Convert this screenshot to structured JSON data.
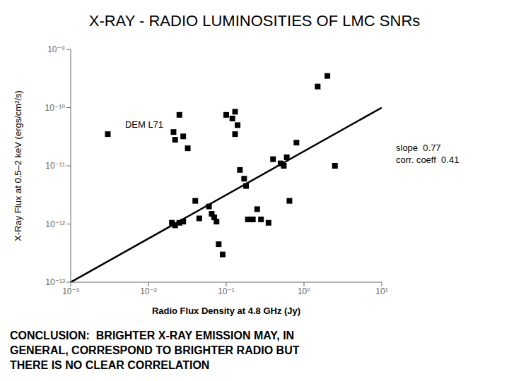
{
  "chart_data": {
    "type": "scatter",
    "title": "X-RAY - RADIO LUMINOSITIES OF LMC SNRs",
    "xlabel": "Radio Flux Density at 4.8 GHz (Jy)",
    "ylabel": "X-Ray Flux at 0.5–2 keV (ergs/cm²/s)",
    "log": true,
    "grid": false,
    "xlim": [
      0.001,
      10
    ],
    "ylim": [
      1e-13,
      1e-09
    ],
    "xticks": [
      {
        "value": 0.001,
        "label": "10⁻³"
      },
      {
        "value": 0.01,
        "label": "10⁻²"
      },
      {
        "value": 0.1,
        "label": "10⁻¹"
      },
      {
        "value": 1,
        "label": "10⁰"
      },
      {
        "value": 10,
        "label": "10¹"
      }
    ],
    "yticks": [
      {
        "value": 1e-13,
        "label": "10⁻¹³"
      },
      {
        "value": 1e-12,
        "label": "10⁻¹²"
      },
      {
        "value": 1e-11,
        "label": "10⁻¹¹"
      },
      {
        "value": 1e-10,
        "label": "10⁻¹⁰"
      },
      {
        "value": 1e-09,
        "label": "10⁻⁹"
      }
    ],
    "series": [
      {
        "type": "scatter",
        "marker": "square",
        "color": "#000000",
        "x": [
          0.003,
          0.021,
          0.022,
          0.025,
          0.028,
          0.032,
          0.02,
          0.022,
          0.025,
          0.028,
          0.04,
          0.045,
          0.06,
          0.065,
          0.07,
          0.075,
          0.08,
          0.09,
          0.1,
          0.12,
          0.13,
          0.13,
          0.14,
          0.15,
          0.17,
          0.18,
          0.19,
          0.2,
          0.22,
          0.25,
          0.28,
          0.35,
          0.4,
          0.5,
          0.55,
          0.6,
          0.65,
          0.8,
          1.5,
          2.0,
          2.5
        ],
        "values": [
          3.5e-11,
          3.8e-11,
          2.8e-11,
          7.5e-11,
          3.2e-11,
          2e-11,
          1.05e-12,
          9.5e-13,
          1.05e-12,
          1.1e-12,
          2.5e-12,
          1.25e-12,
          2e-12,
          1.5e-12,
          1.3e-12,
          1.1e-12,
          4.5e-13,
          3e-13,
          7.5e-11,
          6.5e-11,
          8.5e-11,
          3.5e-11,
          5e-11,
          8.5e-12,
          6e-12,
          4.5e-12,
          1.2e-12,
          1.2e-12,
          1.2e-12,
          1.8e-12,
          1.2e-12,
          1.05e-12,
          1.3e-11,
          1.1e-11,
          1e-11,
          1.4e-11,
          2.5e-12,
          2.5e-11,
          2.3e-10,
          3.5e-10,
          1e-11
        ]
      },
      {
        "type": "line",
        "color": "#000000",
        "x": [
          0.001,
          10.0
        ],
        "values": [
          1e-13,
          1e-10
        ]
      }
    ],
    "annotations": [
      {
        "text": "DEM L71",
        "x": 0.005,
        "y": 4.5e-11
      },
      {
        "text": "slope  0.77\ncorr. coeff  0.41"
      },
      {
        "text": "CONCLUSION:  BRIGHTER X-RAY EMISSION MAY, IN\nGENERAL, CORRESPOND TO BRIGHTER RADIO BUT\nTHERE IS NO CLEAR CORRELATION"
      }
    ]
  }
}
